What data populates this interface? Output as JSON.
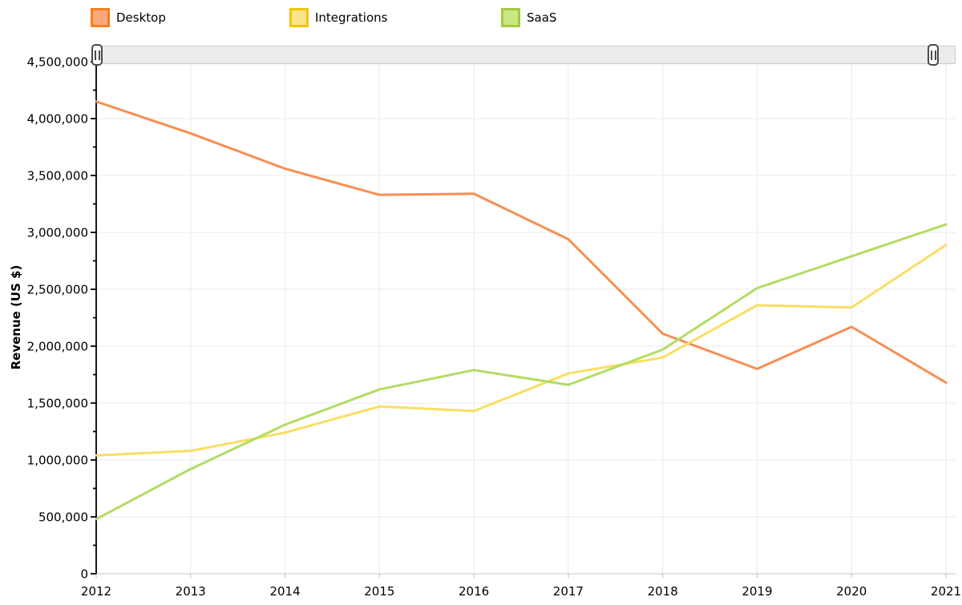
{
  "chart_data": {
    "type": "line",
    "title": "",
    "xlabel": "",
    "ylabel": "Revenue (US $)",
    "categories": [
      "2012",
      "2013",
      "2014",
      "2015",
      "2016",
      "2017",
      "2018",
      "2019",
      "2020",
      "2021"
    ],
    "series": [
      {
        "name": "Desktop",
        "color": "#F78E53",
        "legend_fill": "#FBA97C",
        "legend_border": "#F5801E",
        "values": [
          4150000,
          3870000,
          3560000,
          3330000,
          3340000,
          2940000,
          2110000,
          1800000,
          2170000,
          1680000
        ]
      },
      {
        "name": "Integrations",
        "color": "#FADE63",
        "legend_fill": "#FBE38E",
        "legend_border": "#F2C500",
        "values": [
          1040000,
          1080000,
          1240000,
          1470000,
          1430000,
          1760000,
          1900000,
          2360000,
          2340000,
          2890000
        ]
      },
      {
        "name": "SaaS",
        "color": "#B3DC63",
        "legend_fill": "#CBE784",
        "legend_border": "#A4CB3F",
        "values": [
          480000,
          920000,
          1310000,
          1620000,
          1790000,
          1660000,
          1970000,
          2510000,
          2790000,
          3070000
        ]
      }
    ],
    "ylim": [
      0,
      4500000
    ],
    "y_step": 500000,
    "y_minor_step": 250000,
    "grid": true,
    "legend_position": "top",
    "colors": {
      "grid_line": "#f0f0f0",
      "x_axis_line": "#d9d9d9",
      "x_tick": "#bbbbbb",
      "y_axis_line": "#000000",
      "tick_label": "#000000"
    }
  }
}
